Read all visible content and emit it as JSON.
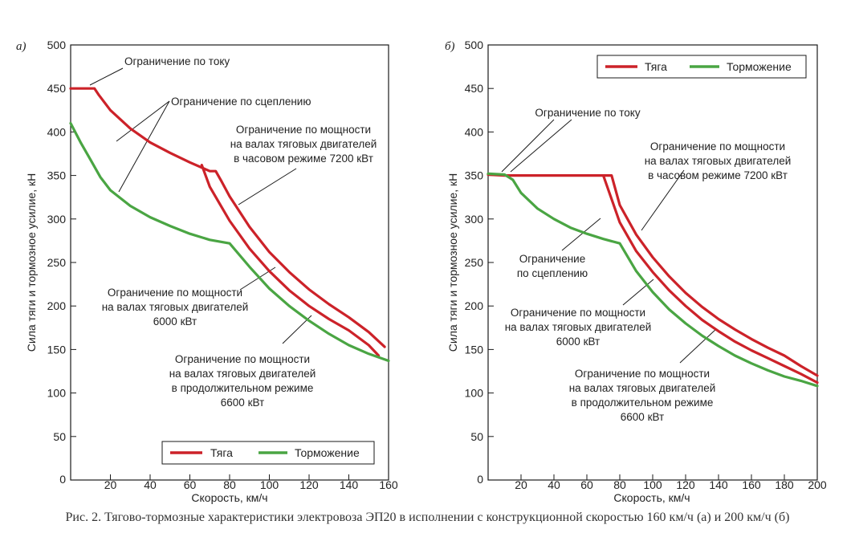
{
  "caption": "Рис. 2. Тягово-тормозные характеристики электровоза ЭП20 в исполнении с конструкционной скоростью 160 км/ч (а) и 200 км/ч (б)",
  "colors": {
    "traction": "#cc2229",
    "braking": "#4aa543",
    "axis": "#1a1a1a",
    "leader": "#1a1a1a"
  },
  "chart_data": [
    {
      "type": "line",
      "panel_label": "а)",
      "xlabel": "Скорость, км/ч",
      "ylabel": "Сила тяги и тормозное усилие, кН",
      "xlim": [
        0,
        160
      ],
      "ylim": [
        0,
        500
      ],
      "xticks": [
        0,
        20,
        40,
        60,
        80,
        100,
        120,
        140,
        160
      ],
      "yticks": [
        50,
        100,
        150,
        200,
        250,
        300,
        350,
        400,
        450,
        500
      ],
      "legend": {
        "position": "bottom-right",
        "traction": "Тяга",
        "braking": "Торможение"
      },
      "series": [
        {
          "name": "Тяга (часовой режим 7200 кВт)",
          "kind": "traction",
          "points": [
            [
              0,
              450
            ],
            [
              12,
              450
            ],
            [
              14,
              443
            ],
            [
              20,
              425
            ],
            [
              30,
              404
            ],
            [
              40,
              388
            ],
            [
              50,
              376
            ],
            [
              60,
              365
            ],
            [
              70,
              355
            ],
            [
              73,
              355
            ],
            [
              76,
              343
            ],
            [
              80,
              326
            ],
            [
              90,
              291
            ],
            [
              100,
              262
            ],
            [
              110,
              239
            ],
            [
              120,
              219
            ],
            [
              130,
              202
            ],
            [
              140,
              187
            ],
            [
              150,
              170
            ],
            [
              158,
              153
            ]
          ]
        },
        {
          "name": "Тяга (продолжительный режим 6600 кВт)",
          "kind": "traction",
          "points": [
            [
              66,
              362
            ],
            [
              70,
              337
            ],
            [
              80,
              298
            ],
            [
              90,
              266
            ],
            [
              100,
              240
            ],
            [
              110,
              218
            ],
            [
              120,
              200
            ],
            [
              130,
              185
            ],
            [
              140,
              172
            ],
            [
              150,
              155
            ],
            [
              155,
              143
            ]
          ]
        },
        {
          "name": "Торможение",
          "kind": "braking",
          "points": [
            [
              0,
              410
            ],
            [
              5,
              388
            ],
            [
              10,
              368
            ],
            [
              15,
              348
            ],
            [
              20,
              333
            ],
            [
              30,
              315
            ],
            [
              40,
              302
            ],
            [
              50,
              292
            ],
            [
              60,
              283
            ],
            [
              70,
              276
            ],
            [
              80,
              272
            ],
            [
              90,
              245
            ],
            [
              100,
              220
            ],
            [
              110,
              200
            ],
            [
              120,
              183
            ],
            [
              130,
              168
            ],
            [
              140,
              155
            ],
            [
              150,
              145
            ],
            [
              160,
              137
            ]
          ]
        }
      ],
      "annotations": [
        {
          "lines": [
            "Ограничение по току"
          ]
        },
        {
          "lines": [
            "Ограничение по сцеплению"
          ]
        },
        {
          "lines": [
            "Ограничение по мощности",
            "на валах тяговых двигателей",
            "в часовом режиме 7200 кВт"
          ]
        },
        {
          "lines": [
            "Ограничение по мощности",
            "на валах тяговых двигателей",
            "6000 кВт"
          ]
        },
        {
          "lines": [
            "Ограничение по мощности",
            "на валах тяговых двигателей",
            "в продолжительном режиме",
            "6600 кВт"
          ]
        }
      ]
    },
    {
      "type": "line",
      "panel_label": "б)",
      "xlabel": "Скорость, км/ч",
      "ylabel": "Сила тяги и тормозное усилие, кН",
      "xlim": [
        0,
        200
      ],
      "ylim": [
        0,
        500
      ],
      "xticks": [
        0,
        20,
        40,
        60,
        80,
        100,
        120,
        140,
        160,
        180,
        200
      ],
      "yticks": [
        50,
        100,
        150,
        200,
        250,
        300,
        350,
        400,
        450,
        500
      ],
      "legend": {
        "position": "top-right",
        "traction": "Тяга",
        "braking": "Торможение"
      },
      "series": [
        {
          "name": "Тяга (часовой режим 7200 кВт)",
          "kind": "traction",
          "points": [
            [
              0,
              351
            ],
            [
              10,
              350
            ],
            [
              30,
              350
            ],
            [
              50,
              350
            ],
            [
              66,
              350
            ],
            [
              75,
              350
            ],
            [
              80,
              316
            ],
            [
              90,
              282
            ],
            [
              100,
              256
            ],
            [
              110,
              234
            ],
            [
              120,
              215
            ],
            [
              130,
              199
            ],
            [
              140,
              185
            ],
            [
              150,
              173
            ],
            [
              160,
              162
            ],
            [
              170,
              152
            ],
            [
              180,
              143
            ],
            [
              190,
              131
            ],
            [
              200,
              120
            ]
          ]
        },
        {
          "name": "Тяга (продолжительный режим 6600 кВт)",
          "kind": "traction",
          "points": [
            [
              70,
              350
            ],
            [
              80,
              296
            ],
            [
              90,
              263
            ],
            [
              100,
              239
            ],
            [
              110,
              218
            ],
            [
              120,
              200
            ],
            [
              130,
              184
            ],
            [
              140,
              171
            ],
            [
              150,
              159
            ],
            [
              160,
              149
            ],
            [
              170,
              140
            ],
            [
              180,
              131
            ],
            [
              190,
              122
            ],
            [
              200,
              112
            ]
          ]
        },
        {
          "name": "Торможение",
          "kind": "braking",
          "points": [
            [
              0,
              352
            ],
            [
              10,
              351
            ],
            [
              15,
              345
            ],
            [
              20,
              330
            ],
            [
              30,
              312
            ],
            [
              40,
              300
            ],
            [
              50,
              290
            ],
            [
              60,
              283
            ],
            [
              70,
              277
            ],
            [
              80,
              272
            ],
            [
              90,
              240
            ],
            [
              100,
              216
            ],
            [
              110,
              196
            ],
            [
              120,
              180
            ],
            [
              130,
              166
            ],
            [
              140,
              154
            ],
            [
              150,
              143
            ],
            [
              160,
              134
            ],
            [
              170,
              126
            ],
            [
              180,
              119
            ],
            [
              190,
              114
            ],
            [
              200,
              108
            ]
          ]
        }
      ],
      "annotations": [
        {
          "lines": [
            "Ограничение по току"
          ]
        },
        {
          "lines": [
            "Ограничение по мощности",
            "на валах тяговых двигателей",
            "в часовом режиме 7200 кВт"
          ]
        },
        {
          "lines": [
            "Ограничение",
            "по сцеплению"
          ]
        },
        {
          "lines": [
            "Ограничение по мощности",
            "на валах тяговых двигателей",
            "6000 кВт"
          ]
        },
        {
          "lines": [
            "Ограничение по мощности",
            "на валах тяговых двигателей",
            "в продолжительном режиме",
            "6600 кВт"
          ]
        }
      ]
    }
  ]
}
